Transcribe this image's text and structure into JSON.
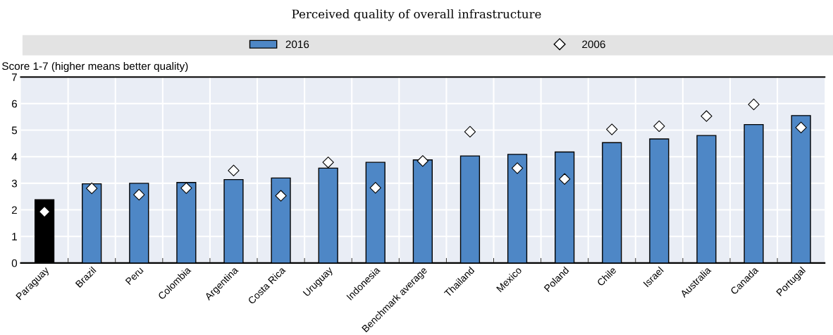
{
  "chart_data": {
    "type": "bar",
    "title": "Perceived quality of overall infrastructure",
    "ylabel": "Score 1-7 (higher means better quality)",
    "categories": [
      "Paraguay",
      "Brazil",
      "Peru",
      "Colombia",
      "Argentina",
      "Costa Rica",
      "Uruguay",
      "Indonesia",
      "Benchmark average",
      "Thailand",
      "Mexico",
      "Poland",
      "Chile",
      "Israel",
      "Australia",
      "Canada",
      "Portugal"
    ],
    "series": [
      {
        "name": "2016",
        "color": "#4e87c6",
        "colors": [
          "#000000",
          "#4e87c6",
          "#4e87c6",
          "#4e87c6",
          "#4e87c6",
          "#4e87c6",
          "#4e87c6",
          "#4e87c6",
          "#4e87c6",
          "#4e87c6",
          "#4e87c6",
          "#4e87c6",
          "#4e87c6",
          "#4e87c6",
          "#4e87c6",
          "#4e87c6",
          "#4e87c6"
        ],
        "values": [
          2.38,
          2.98,
          3.0,
          3.03,
          3.14,
          3.2,
          3.57,
          3.79,
          3.88,
          4.03,
          4.09,
          4.18,
          4.53,
          4.67,
          4.8,
          5.21,
          5.55
        ]
      },
      {
        "name": "2006",
        "type": "scatter",
        "color": "#ffffff",
        "marker": "diamond",
        "values": [
          1.93,
          2.81,
          2.57,
          2.82,
          3.48,
          2.53,
          3.79,
          2.83,
          3.84,
          4.94,
          3.57,
          3.16,
          5.03,
          5.15,
          5.53,
          5.97,
          5.1
        ]
      }
    ],
    "ylim": [
      0,
      7
    ],
    "yticks": [
      0,
      1,
      2,
      3,
      4,
      5,
      6,
      7
    ],
    "grid": true,
    "legend": "top"
  }
}
